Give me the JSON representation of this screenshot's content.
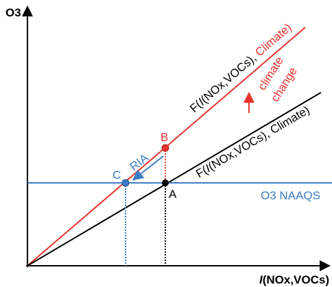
{
  "axes": {
    "y_label": "O3",
    "x_label_italic": "I",
    "x_label_rest": "(NOx,VOCs)"
  },
  "curves": [
    {
      "prefix": "F(",
      "italic": "I",
      "middle": "(NOx,VOCs), ",
      "suffix": "Climate)"
    },
    {
      "prefix": "F(",
      "italic": "I",
      "middle": "(NOx,VOCs), ",
      "suffix": "Climate)"
    }
  ],
  "points": {
    "a": "A",
    "b": "B",
    "c": "C"
  },
  "annotations": {
    "ria": "RIA",
    "climate_change_1": "climate",
    "climate_change_2": "change",
    "standard": "O3 NAAQS"
  }
}
